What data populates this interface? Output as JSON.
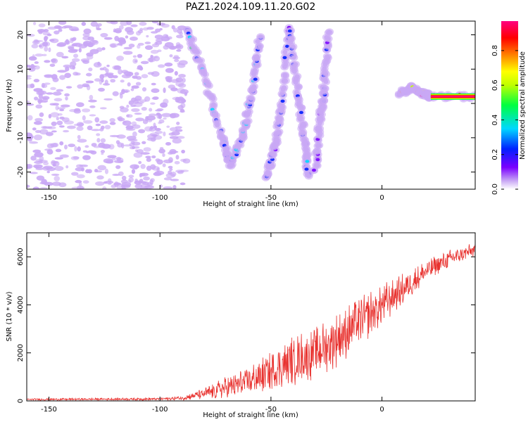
{
  "figure": {
    "title": "PAZ1.2024.109.11.20.G02"
  },
  "chart_data": [
    {
      "type": "heatmap",
      "xlabel": "Height of straight line (km)",
      "ylabel": "Frequency (Hz)",
      "xlim": [
        -160,
        42
      ],
      "ylim": [
        -25,
        24
      ],
      "xticks": [
        -150,
        -100,
        -50,
        0
      ],
      "yticks": [
        -20,
        -10,
        0,
        10,
        20
      ],
      "colorbar": {
        "label": "Normalized spectral amplitude",
        "range": [
          0,
          0.97
        ],
        "ticks": [
          0.0,
          0.2,
          0.4,
          0.6,
          0.8
        ],
        "colors": [
          "#ffffff",
          "#c9a8f5",
          "#7a00ff",
          "#0020ff",
          "#00d8ff",
          "#00ff40",
          "#c0ff00",
          "#ffff00",
          "#ff8000",
          "#ff0000",
          "#ff0080"
        ]
      },
      "ridges": [
        {
          "x": [
            -88,
            -80,
            -72,
            -68
          ],
          "y": [
            22,
            8,
            -10,
            -18
          ],
          "amplitude": 0.45
        },
        {
          "x": [
            -68,
            -62,
            -58,
            -55
          ],
          "y": [
            -18,
            -8,
            5,
            20
          ],
          "amplitude": 0.4
        },
        {
          "x": [
            -52,
            -48,
            -45,
            -42
          ],
          "y": [
            -22,
            -12,
            0,
            22
          ],
          "amplitude": 0.35
        },
        {
          "x": [
            -42,
            -38,
            -35,
            -33
          ],
          "y": [
            22,
            5,
            -10,
            -22
          ],
          "amplitude": 0.35
        },
        {
          "x": [
            -30,
            -28,
            -26,
            -24
          ],
          "y": [
            -20,
            -5,
            5,
            22
          ],
          "amplitude": 0.3
        },
        {
          "x": [
            8,
            14,
            18,
            22,
            42
          ],
          "y": [
            3,
            4.5,
            3,
            2,
            2
          ],
          "amplitude": 0.95
        }
      ]
    },
    {
      "type": "line",
      "xlabel": "Height of straight line (km)",
      "ylabel": "SNR (10 * v/v)",
      "xlim": [
        -160,
        42
      ],
      "ylim": [
        0,
        7000
      ],
      "xticks": [
        -150,
        -100,
        -50,
        0
      ],
      "yticks": [
        0,
        2000,
        4000,
        6000
      ],
      "series_color": "#e8322f",
      "envelope": {
        "x": [
          -160,
          -100,
          -90,
          -80,
          -70,
          -60,
          -50,
          -40,
          -30,
          -20,
          -10,
          0,
          10,
          20,
          30,
          42
        ],
        "mean": [
          60,
          80,
          120,
          300,
          550,
          800,
          1200,
          1700,
          2000,
          2600,
          3300,
          4000,
          4700,
          5400,
          5900,
          6300
        ],
        "spread": [
          40,
          60,
          100,
          250,
          500,
          700,
          900,
          1100,
          1100,
          1200,
          1100,
          900,
          700,
          500,
          400,
          300
        ]
      }
    }
  ]
}
